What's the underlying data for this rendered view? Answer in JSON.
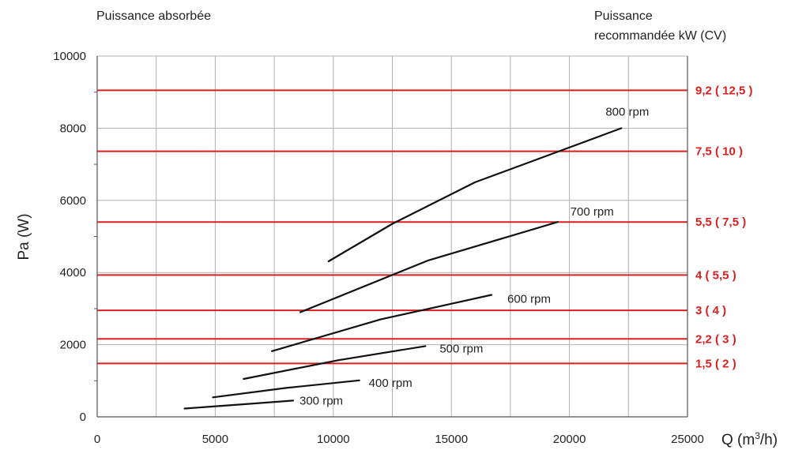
{
  "header": {
    "left_title": "Puissance absorbée",
    "right_title_line1": "Puissance",
    "right_title_line2": "recommandée kW (CV)"
  },
  "colors": {
    "grid": "#b0b0b0",
    "power_lines": "#d92020",
    "curves": "#111111"
  },
  "chart_data": {
    "type": "line",
    "ylabel": "Pa (W)",
    "xlabel_main": "Q (m",
    "xlabel_sup": "3",
    "xlabel_tail": "/h)",
    "xlim": [
      0,
      25000
    ],
    "ylim": [
      0,
      10000
    ],
    "x_ticks": [
      0,
      5000,
      10000,
      15000,
      20000,
      25000
    ],
    "y_ticks": [
      0,
      2000,
      4000,
      6000,
      8000,
      10000
    ],
    "grid": true,
    "series": [
      {
        "name": "300 rpm",
        "points": [
          [
            3700,
            230
          ],
          [
            6000,
            340
          ],
          [
            8300,
            450
          ]
        ]
      },
      {
        "name": "400 rpm",
        "points": [
          [
            4900,
            540
          ],
          [
            8000,
            800
          ],
          [
            11100,
            1010
          ]
        ]
      },
      {
        "name": "500 rpm",
        "points": [
          [
            6200,
            1050
          ],
          [
            10200,
            1570
          ],
          [
            13900,
            1960
          ]
        ]
      },
      {
        "name": "600 rpm",
        "points": [
          [
            7400,
            1820
          ],
          [
            12000,
            2700
          ],
          [
            16700,
            3380
          ]
        ]
      },
      {
        "name": "700 rpm",
        "points": [
          [
            8600,
            2900
          ],
          [
            14000,
            4330
          ],
          [
            19500,
            5400
          ]
        ]
      },
      {
        "name": "800 rpm",
        "points": [
          [
            9800,
            4310
          ],
          [
            12500,
            5350
          ],
          [
            16000,
            6500
          ],
          [
            22200,
            8000
          ]
        ]
      }
    ],
    "recommended_power": [
      {
        "label": "1,5 ( 2 )",
        "y": 1480
      },
      {
        "label": "2,2 ( 3 )",
        "y": 2160
      },
      {
        "label": "3 ( 4 )",
        "y": 2950
      },
      {
        "label": "4 ( 5,5 )",
        "y": 3930
      },
      {
        "label": "5,5 ( 7,5 )",
        "y": 5400
      },
      {
        "label": "7,5 ( 10 )",
        "y": 7360
      },
      {
        "label": "9,2 ( 12,5 )",
        "y": 9050
      }
    ]
  }
}
